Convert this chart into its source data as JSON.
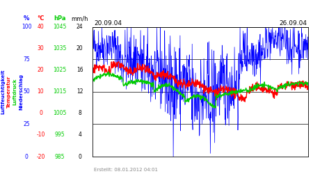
{
  "title_left": "20.09.04",
  "title_right": "26.09.04",
  "footer": "Erstellt: 08.01.2012 04:01",
  "unit_pct": "%",
  "unit_temp": "°C",
  "unit_hpa": "hPa",
  "unit_mmh": "mm/h",
  "ylabel_luftfeuchtigkeit": "Luftfeuchtigkeit",
  "ylabel_temperatur": "Temperatur",
  "ylabel_luftdruck": "Luftdruck",
  "ylabel_niederschlag": "Niederschlag",
  "y_ticks_pct": [
    0,
    25,
    50,
    75,
    100
  ],
  "y_ticks_temp": [
    -20,
    -10,
    0,
    10,
    20,
    30,
    40
  ],
  "y_ticks_hpa": [
    985,
    995,
    1005,
    1015,
    1025,
    1035,
    1045
  ],
  "y_ticks_mmh": [
    0,
    4,
    8,
    12,
    16,
    20,
    24
  ],
  "color_pct": "#0000ff",
  "color_temp": "#ff0000",
  "color_hpa": "#00cc00",
  "color_mmh": "#0000ff",
  "bg_color": "#ffffff",
  "n_points": 700
}
